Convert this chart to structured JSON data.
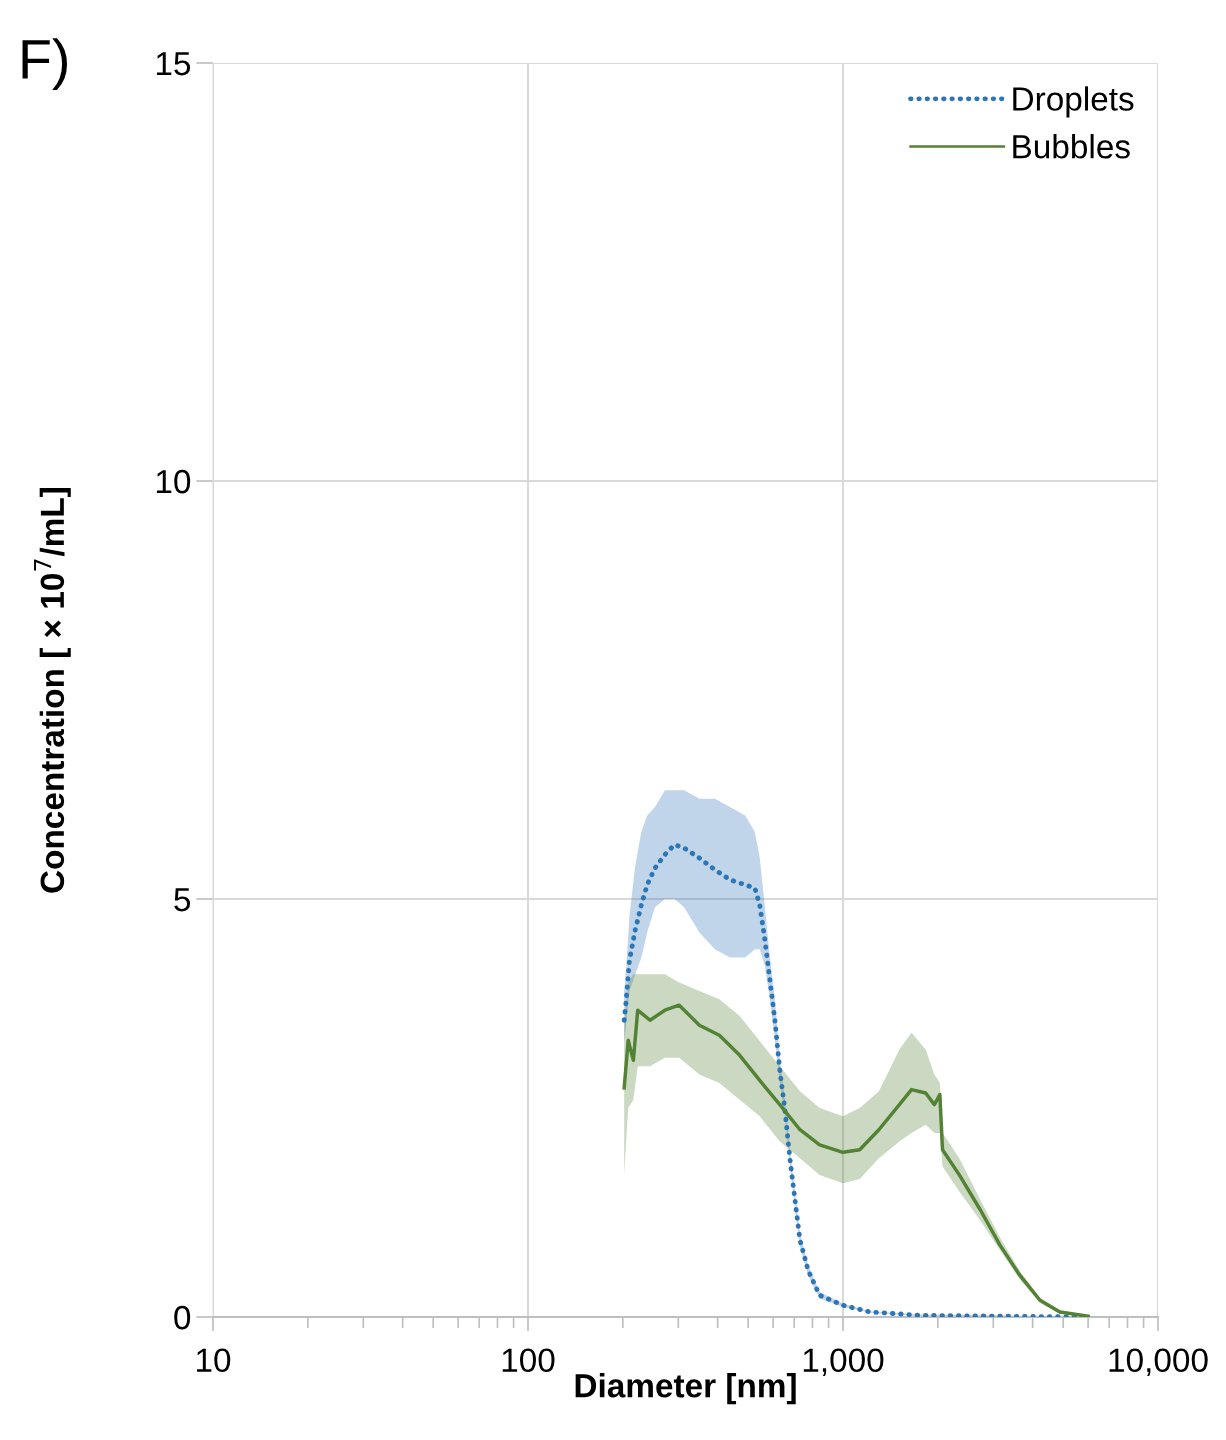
{
  "chart_data": {
    "type": "line",
    "title": "F)",
    "xlabel": "Diameter [nm]",
    "ylabel": "Concentration [ × 10$^{7}$/mL]",
    "log": "x",
    "xlim": [
      10,
      10000
    ],
    "xticks": [
      10,
      100,
      {
        "value": 1000,
        "label": "1,000"
      },
      {
        "value": 10000,
        "label": "10,000"
      }
    ],
    "ylim": [
      0,
      15
    ],
    "yticks": [
      0,
      5,
      10,
      15
    ],
    "grid": true,
    "legend": "top right",
    "series": [
      {
        "name": "Droplets",
        "color": "#2e75b6",
        "line_style": "dotted",
        "x": [
          202,
          205,
          210,
          219,
          229,
          239,
          253,
          272,
          292,
          313,
          350,
          392,
          438,
          489,
          525,
          544,
          565,
          586,
          608,
          630,
          654,
          679,
          704,
          730,
          775,
          843,
          1000,
          1220,
          1760,
          3140,
          6000
        ],
        "values": [
          3.55,
          3.79,
          4.27,
          4.63,
          4.93,
          5.17,
          5.37,
          5.53,
          5.65,
          5.61,
          5.49,
          5.35,
          5.23,
          5.17,
          5.13,
          4.93,
          4.51,
          4.03,
          3.55,
          2.95,
          2.48,
          1.88,
          1.4,
          0.92,
          0.56,
          0.26,
          0.14,
          0.06,
          0.02,
          0.01,
          0
        ],
        "lower": [
          3.3,
          3.5,
          3.9,
          4.1,
          4.3,
          4.6,
          4.9,
          5.0,
          5.0,
          4.9,
          4.6,
          4.4,
          4.3,
          4.3,
          4.4,
          4.4,
          4.2,
          3.8,
          3.3,
          2.8,
          2.4,
          1.8,
          1.3,
          0.85,
          0.5,
          0.22,
          0.12,
          0.05,
          0.01,
          0,
          0
        ],
        "upper": [
          3.9,
          4.2,
          4.8,
          5.4,
          5.8,
          6.0,
          6.1,
          6.3,
          6.3,
          6.3,
          6.2,
          6.2,
          6.1,
          6.0,
          5.8,
          5.5,
          4.9,
          4.3,
          3.8,
          3.1,
          2.6,
          2.0,
          1.5,
          1.0,
          0.62,
          0.3,
          0.16,
          0.07,
          0.03,
          0.02,
          0
        ]
      },
      {
        "name": "Bubbles",
        "color": "#548235",
        "line_style": "solid",
        "x": [
          202,
          208,
          216,
          223,
          244,
          272,
          302,
          350,
          405,
          470,
          544,
          630,
          730,
          843,
          1000,
          1130,
          1300,
          1510,
          1650,
          1830,
          1950,
          2030,
          2070,
          2340,
          2730,
          3150,
          3640,
          4220,
          4880,
          6000
        ],
        "values": [
          2.74,
          3.31,
          3.07,
          3.67,
          3.55,
          3.67,
          3.73,
          3.49,
          3.37,
          3.13,
          2.83,
          2.54,
          2.24,
          2.06,
          1.97,
          2.0,
          2.24,
          2.54,
          2.72,
          2.68,
          2.54,
          2.66,
          2.0,
          1.7,
          1.28,
          0.86,
          0.5,
          0.2,
          0.06,
          0.01
        ],
        "lower": [
          1.7,
          2.5,
          2.6,
          3.0,
          3.0,
          3.1,
          3.1,
          2.9,
          2.8,
          2.6,
          2.4,
          2.1,
          1.9,
          1.7,
          1.6,
          1.65,
          1.9,
          2.1,
          2.2,
          2.3,
          2.2,
          2.2,
          1.8,
          1.5,
          1.15,
          0.8,
          0.45,
          0.17,
          0.04,
          0
        ],
        "upper": [
          3.5,
          4.0,
          4.1,
          4.1,
          4.1,
          4.1,
          4.0,
          3.9,
          3.8,
          3.6,
          3.3,
          3.0,
          2.7,
          2.5,
          2.4,
          2.5,
          2.7,
          3.2,
          3.4,
          3.2,
          2.9,
          2.8,
          2.2,
          1.9,
          1.4,
          0.95,
          0.55,
          0.23,
          0.08,
          0.02
        ]
      }
    ]
  }
}
